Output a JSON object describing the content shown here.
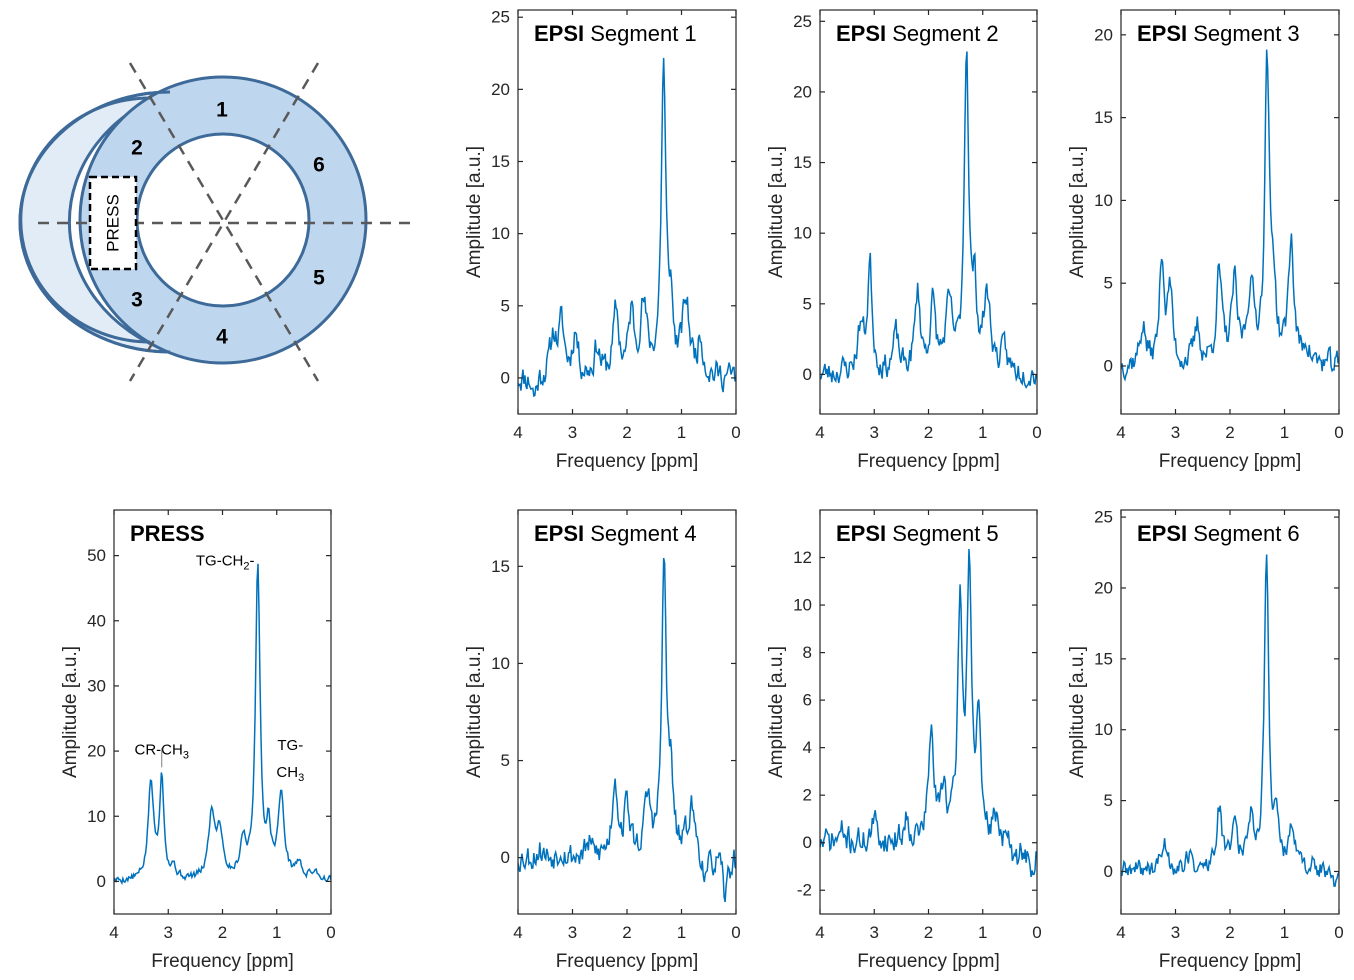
{
  "diagram": {
    "segments": [
      "1",
      "2",
      "3",
      "4",
      "5",
      "6"
    ],
    "voxel_label": "PRESS",
    "colors": {
      "ring_fill": "#bfd7ee",
      "ring_stroke": "#3d6a99",
      "crescent_fill": "#e1ecf7",
      "divider": "#595959"
    }
  },
  "style": {
    "line_color": "#0072bd",
    "axis_color": "#262626"
  },
  "chart_data": [
    {
      "id": "seg1",
      "type": "line",
      "title_bold": "EPSI",
      "title_rest": " Segment 1",
      "xlabel": "Frequency [ppm]",
      "ylabel": "Amplitude [a.u.]",
      "xlim": [
        4,
        0
      ],
      "xreversed": true,
      "xticks": [
        4,
        3,
        2,
        1,
        0
      ],
      "ylim": [
        -2.5,
        25.5
      ],
      "yticks": [
        0,
        5,
        10,
        15,
        20,
        25
      ],
      "peaks": [
        [
          3.7,
          -1.4,
          0.05
        ],
        [
          3.35,
          2.8,
          0.07
        ],
        [
          3.2,
          3.4,
          0.06
        ],
        [
          2.95,
          3.0,
          0.06
        ],
        [
          2.55,
          2.0,
          0.06
        ],
        [
          2.2,
          4.4,
          0.06
        ],
        [
          1.92,
          4.0,
          0.06
        ],
        [
          1.7,
          4.6,
          0.08
        ],
        [
          1.33,
          21.0,
          0.05
        ],
        [
          1.2,
          4.2,
          0.05
        ],
        [
          0.92,
          5.0,
          0.08
        ],
        [
          0.65,
          2.4,
          0.06
        ]
      ],
      "noise": 1.5,
      "seed": 11,
      "annotations": []
    },
    {
      "id": "seg2",
      "type": "line",
      "title_bold": "EPSI",
      "title_rest": " Segment 2",
      "xlabel": "Frequency [ppm]",
      "ylabel": "Amplitude [a.u.]",
      "xlim": [
        4,
        0
      ],
      "xreversed": true,
      "xticks": [
        4,
        3,
        2,
        1,
        0
      ],
      "ylim": [
        -2.8,
        25.8
      ],
      "yticks": [
        0,
        5,
        10,
        15,
        20,
        25
      ],
      "peaks": [
        [
          3.6,
          0.2,
          0.05
        ],
        [
          3.25,
          3.2,
          0.07
        ],
        [
          3.08,
          7.5,
          0.05
        ],
        [
          2.6,
          2.6,
          0.06
        ],
        [
          2.2,
          5.6,
          0.06
        ],
        [
          1.92,
          4.6,
          0.06
        ],
        [
          1.62,
          4.4,
          0.08
        ],
        [
          1.3,
          22.6,
          0.05
        ],
        [
          1.15,
          4.8,
          0.05
        ],
        [
          0.92,
          5.2,
          0.08
        ],
        [
          0.6,
          1.5,
          0.06
        ]
      ],
      "noise": 1.4,
      "seed": 23,
      "annotations": []
    },
    {
      "id": "seg3",
      "type": "line",
      "title_bold": "EPSI",
      "title_rest": " Segment 3",
      "xlabel": "Frequency [ppm]",
      "ylabel": "Amplitude [a.u.]",
      "xlim": [
        4,
        0
      ],
      "xreversed": true,
      "xticks": [
        4,
        3,
        2,
        1,
        0
      ],
      "ylim": [
        -2.9,
        21.5
      ],
      "yticks": [
        0,
        5,
        10,
        15,
        20
      ],
      "peaks": [
        [
          3.6,
          2.4,
          0.06
        ],
        [
          3.25,
          6.6,
          0.05
        ],
        [
          3.1,
          4.5,
          0.05
        ],
        [
          2.6,
          2.2,
          0.06
        ],
        [
          2.2,
          5.4,
          0.06
        ],
        [
          1.92,
          4.6,
          0.06
        ],
        [
          1.62,
          4.4,
          0.08
        ],
        [
          1.32,
          18.0,
          0.05
        ],
        [
          1.2,
          4.2,
          0.05
        ],
        [
          0.88,
          7.4,
          0.06
        ],
        [
          0.6,
          1.2,
          0.06
        ]
      ],
      "noise": 1.2,
      "seed": 37,
      "annotations": []
    },
    {
      "id": "press",
      "type": "line",
      "title_bold": "PRESS",
      "title_rest": "",
      "xlabel": "Frequency [ppm]",
      "ylabel": "Amplitude [a.u.]",
      "xlim": [
        4,
        0
      ],
      "xreversed": true,
      "xticks": [
        4,
        3,
        2,
        1,
        0
      ],
      "ylim": [
        -5,
        57
      ],
      "yticks": [
        0,
        10,
        20,
        30,
        40,
        50
      ],
      "peaks": [
        [
          3.32,
          14.8,
          0.06
        ],
        [
          3.12,
          15.5,
          0.05
        ],
        [
          2.9,
          1.8,
          0.05
        ],
        [
          2.2,
          9.8,
          0.07
        ],
        [
          2.05,
          7.2,
          0.07
        ],
        [
          1.62,
          5.6,
          0.07
        ],
        [
          1.35,
          48.5,
          0.05
        ],
        [
          1.15,
          7.0,
          0.05
        ],
        [
          0.92,
          12.6,
          0.07
        ],
        [
          0.6,
          2.4,
          0.07
        ],
        [
          0.3,
          1.4,
          0.08
        ]
      ],
      "noise": 0.9,
      "seed": 5,
      "annotations": [
        {
          "text": "CR-CH",
          "sub": "3",
          "x": 3.12,
          "y": 19.5,
          "leader": [
            17.5,
            20.5
          ]
        },
        {
          "text": "TG-CH",
          "sub": "2",
          "tail": "-",
          "x": 1.95,
          "y": 48.5,
          "leader": null
        },
        {
          "text": "TG-",
          "sub": "",
          "x": 0.75,
          "y": 20.2,
          "leader": null
        },
        {
          "text": "CH",
          "sub": "3",
          "x": 0.75,
          "y": 16.0,
          "leader": null
        }
      ]
    },
    {
      "id": "seg4",
      "type": "line",
      "title_bold": "EPSI",
      "title_rest": " Segment 4",
      "xlabel": "Frequency [ppm]",
      "ylabel": "Amplitude [a.u.]",
      "xlim": [
        4,
        0
      ],
      "xreversed": true,
      "xticks": [
        4,
        3,
        2,
        1,
        0
      ],
      "ylim": [
        -2.9,
        17.9
      ],
      "yticks": [
        0,
        5,
        10,
        15
      ],
      "peaks": [
        [
          3.6,
          0.4,
          0.06
        ],
        [
          3.2,
          0.5,
          0.06
        ],
        [
          2.7,
          0.6,
          0.06
        ],
        [
          2.22,
          4.0,
          0.06
        ],
        [
          2.0,
          2.6,
          0.06
        ],
        [
          1.62,
          2.8,
          0.07
        ],
        [
          1.32,
          14.8,
          0.05
        ],
        [
          1.2,
          3.4,
          0.05
        ],
        [
          0.82,
          2.6,
          0.08
        ],
        [
          0.55,
          -1.4,
          0.06
        ],
        [
          0.2,
          -2.0,
          0.06
        ]
      ],
      "noise": 1.1,
      "seed": 53,
      "annotations": []
    },
    {
      "id": "seg5",
      "type": "line",
      "title_bold": "EPSI",
      "title_rest": " Segment 5",
      "xlabel": "Frequency [ppm]",
      "ylabel": "Amplitude [a.u.]",
      "xlim": [
        4,
        0
      ],
      "xreversed": true,
      "xticks": [
        4,
        3,
        2,
        1,
        0
      ],
      "ylim": [
        -3,
        14
      ],
      "yticks": [
        -2,
        0,
        2,
        4,
        6,
        8,
        10,
        12
      ],
      "peaks": [
        [
          3.6,
          0.4,
          0.06
        ],
        [
          3.0,
          0.8,
          0.06
        ],
        [
          2.4,
          1.0,
          0.06
        ],
        [
          1.95,
          4.4,
          0.06
        ],
        [
          1.72,
          2.2,
          0.06
        ],
        [
          1.42,
          9.6,
          0.05
        ],
        [
          1.25,
          11.4,
          0.05
        ],
        [
          1.08,
          4.4,
          0.05
        ],
        [
          0.75,
          1.0,
          0.07
        ],
        [
          0.4,
          -1.0,
          0.06
        ],
        [
          0.1,
          -1.6,
          0.06
        ]
      ],
      "noise": 0.9,
      "seed": 71,
      "annotations": []
    },
    {
      "id": "seg6",
      "type": "line",
      "title_bold": "EPSI",
      "title_rest": " Segment 6",
      "xlabel": "Frequency [ppm]",
      "ylabel": "Amplitude [a.u.]",
      "xlim": [
        4,
        0
      ],
      "xreversed": true,
      "xticks": [
        4,
        3,
        2,
        1,
        0
      ],
      "ylim": [
        -3,
        25.5
      ],
      "yticks": [
        0,
        5,
        10,
        15,
        20,
        25
      ],
      "peaks": [
        [
          3.6,
          0.2,
          0.06
        ],
        [
          3.2,
          2.0,
          0.07
        ],
        [
          2.75,
          1.0,
          0.06
        ],
        [
          2.2,
          4.2,
          0.06
        ],
        [
          1.92,
          3.6,
          0.06
        ],
        [
          1.62,
          3.6,
          0.07
        ],
        [
          1.33,
          21.5,
          0.05
        ],
        [
          1.15,
          3.4,
          0.05
        ],
        [
          0.85,
          3.0,
          0.07
        ],
        [
          0.5,
          0.4,
          0.06
        ],
        [
          0.1,
          -1.2,
          0.06
        ]
      ],
      "noise": 1.1,
      "seed": 89,
      "annotations": []
    }
  ]
}
